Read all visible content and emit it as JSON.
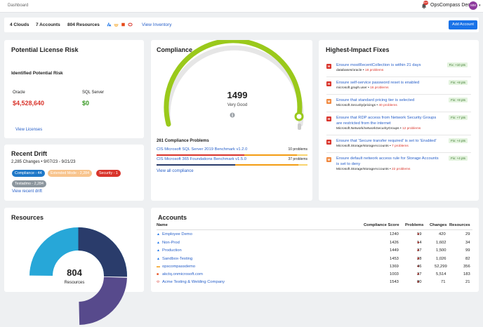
{
  "header": {
    "breadcrumb": "Dashboard",
    "notifications": "99+",
    "org": "OpsCompass Demo",
    "avatar": "MM"
  },
  "stats": {
    "clouds": "4 Clouds",
    "accounts": "7 Accounts",
    "resources": "804 Resources",
    "view_inventory": "View Inventory",
    "add_account": "Add Account"
  },
  "license": {
    "title": "Potential License Risk",
    "subtitle": "Identified Potential Risk",
    "oracle_label": "Oracle",
    "oracle_value": "$4,528,640",
    "sql_label": "SQL Server",
    "sql_value": "$0",
    "link": "View Licenses"
  },
  "drift": {
    "title": "Recent Drift",
    "summary": "2,285 Changes • 9/07/23 - 9/21/23",
    "tags": [
      {
        "label": "Compliance - 44"
      },
      {
        "label": "Extended Mode - 2,284"
      },
      {
        "label": "Security - 1"
      },
      {
        "label": "Testadmo - 2,284"
      }
    ],
    "link": "View recent drift"
  },
  "compliance": {
    "title": "Compliance",
    "score": "1499",
    "rating": "Very Good",
    "problems_title": "261 Compliance Problems",
    "problems": [
      {
        "name": "CIS Microsoft SQL Server 2019 Benchmark v1.2.0",
        "count": "10 problems"
      },
      {
        "name": "CIS Microsoft 365 Foundations Benchmark v1.5.0",
        "count": "37 problems"
      }
    ],
    "link": "View all compliance"
  },
  "fixes": {
    "title": "Highest-Impact Fixes",
    "items": [
      {
        "sev": "H",
        "title": "Ensure mostRecentCollection is within 21 days",
        "scope": "databases/oracle",
        "problems": "18 problems",
        "badge": "Fix: +10 pts"
      },
      {
        "sev": "H",
        "title": "Ensure self-service password reset is enabled",
        "scope": "microsoft.graph.user",
        "problems": "16 problems",
        "badge": "Fix: +8 pts"
      },
      {
        "sev": "M",
        "title": "Ensure that standard pricing tier is selected",
        "scope": "Microsoft.Security/pricings",
        "problems": "40 problems",
        "badge": "Fix: +8 pts"
      },
      {
        "sev": "H",
        "title": "Ensure that RDP access from Network Security Groups are restricted from the internet",
        "scope": "Microsoft.Network/networkSecurityGroups",
        "problems": "12 problems",
        "badge": "Fix: +7 pts"
      },
      {
        "sev": "H",
        "title": "Ensure that 'Secure transfer required' is set to 'Enabled'",
        "scope": "Microsoft.Storage/storageAccounts",
        "problems": "7 problems",
        "badge": "Fix: +4 pts"
      },
      {
        "sev": "M",
        "title": "Ensure default network access rule for Storage Accounts is set to deny",
        "scope": "Microsoft.Storage/storageAccounts",
        "problems": "22 problems",
        "badge": "Fix: +4 pts"
      }
    ]
  },
  "resources": {
    "title": "Resources",
    "total": "804",
    "label": "Resources"
  },
  "accounts": {
    "title": "Accounts",
    "columns": [
      "Name",
      "Compliance Score",
      "Problems",
      "Changes",
      "Resources"
    ],
    "rows": [
      {
        "name": "Employee Demo",
        "score": "1240",
        "problems": "19",
        "changes": "420",
        "resources": "29"
      },
      {
        "name": "Non-Prod",
        "score": "1426",
        "problems": "14",
        "changes": "1,602",
        "resources": "34"
      },
      {
        "name": "Production",
        "score": "1449",
        "problems": "37",
        "changes": "1,500",
        "resources": "99"
      },
      {
        "name": "Sandbox-Testing",
        "score": "1453",
        "problems": "28",
        "changes": "1,026",
        "resources": "82"
      },
      {
        "name": "opscompassdemo",
        "score": "1369",
        "problems": "46",
        "changes": "52,299",
        "resources": "356"
      },
      {
        "name": "akctq.onmicrosoft.com",
        "score": "1003",
        "problems": "37",
        "changes": "5,514",
        "resources": "183"
      },
      {
        "name": "Acme Testing & Welding Company",
        "score": "1543",
        "problems": "80",
        "changes": "71",
        "resources": "21"
      }
    ]
  },
  "colors": {
    "accent": "#1a73e8",
    "gauge": "#9ac91b",
    "red": "#d9342b",
    "navy": "#2a3c6b",
    "cyan": "#27a7d8",
    "purple": "#574a8c"
  }
}
